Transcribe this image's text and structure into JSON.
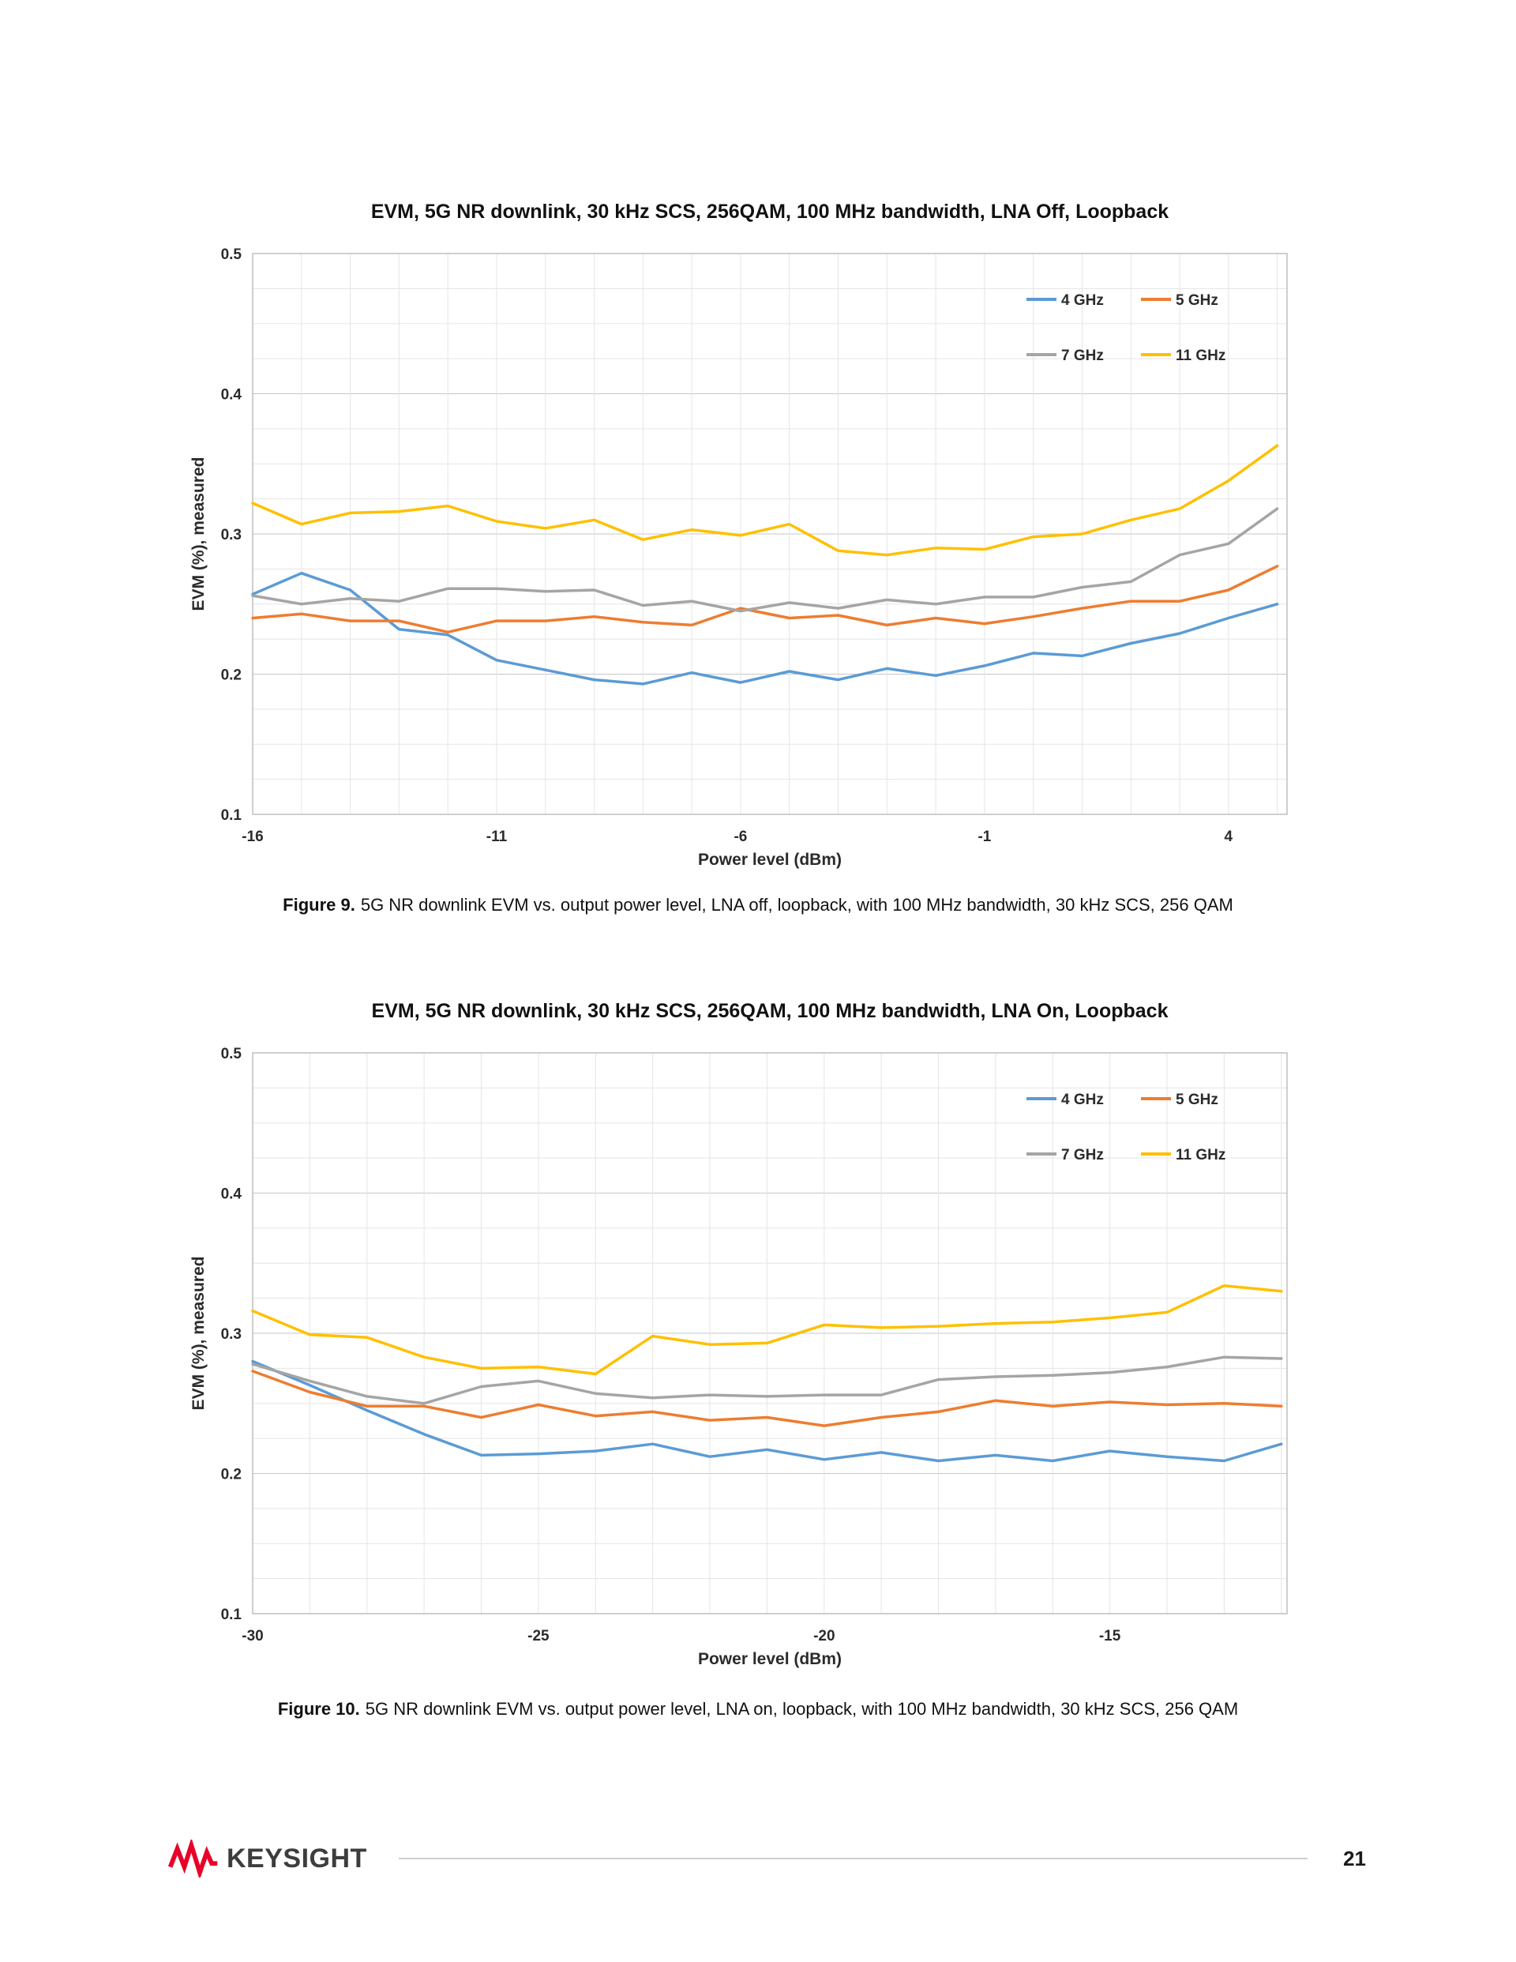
{
  "captions": {
    "figure9_label": "Figure 9.",
    "figure9_text": "5G NR downlink EVM vs. output power level, LNA off, loopback, with 100 MHz bandwidth, 30 kHz SCS, 256 QAM",
    "figure10_label": "Figure 10.",
    "figure10_text": "5G NR downlink EVM vs. output power level, LNA on, loopback, with 100 MHz bandwidth, 30 kHz SCS, 256 QAM"
  },
  "footer": {
    "brand": "KEYSIGHT",
    "brand_color": "#E90029",
    "page_number": "21"
  },
  "chart_data": [
    {
      "type": "line",
      "title": "EVM, 5G NR downlink, 30 kHz SCS, 256QAM, 100 MHz bandwidth, LNA Off, Loopback",
      "xlabel": "Power level (dBm)",
      "ylabel": "EVM (%),  measured",
      "xlim": [
        -16,
        5.2
      ],
      "ylim": [
        0.1,
        0.5
      ],
      "x_ticks": [
        -16,
        -11,
        -6,
        -1,
        4
      ],
      "y_ticks": [
        0.1,
        0.2,
        0.3,
        0.4,
        0.5
      ],
      "grid": {
        "y_minor_step": 0.025,
        "x_step": 1
      },
      "legend_position": "top-right",
      "x": [
        -16,
        -15,
        -14,
        -13,
        -12,
        -11,
        -10,
        -9,
        -8,
        -7,
        -6,
        -5,
        -4,
        -3,
        -2,
        -1,
        0,
        1,
        2,
        3,
        4,
        5
      ],
      "series": [
        {
          "name": "4 GHz",
          "color": "#5B9BD5",
          "values": [
            0.257,
            0.272,
            0.26,
            0.232,
            0.228,
            0.21,
            0.203,
            0.196,
            0.193,
            0.201,
            0.194,
            0.202,
            0.196,
            0.204,
            0.199,
            0.206,
            0.215,
            0.213,
            0.222,
            0.229,
            0.24,
            0.25
          ]
        },
        {
          "name": "5 GHz",
          "color": "#ED7D31",
          "values": [
            0.24,
            0.243,
            0.238,
            0.238,
            0.23,
            0.238,
            0.238,
            0.241,
            0.237,
            0.235,
            0.247,
            0.24,
            0.242,
            0.235,
            0.24,
            0.236,
            0.241,
            0.247,
            0.252,
            0.252,
            0.26,
            0.277
          ]
        },
        {
          "name": "7 GHz",
          "color": "#A5A5A5",
          "values": [
            0.256,
            0.25,
            0.254,
            0.252,
            0.261,
            0.261,
            0.259,
            0.26,
            0.249,
            0.252,
            0.245,
            0.251,
            0.247,
            0.253,
            0.25,
            0.255,
            0.255,
            0.262,
            0.266,
            0.285,
            0.293,
            0.318
          ]
        },
        {
          "name": "11 GHz",
          "color": "#FFC000",
          "values": [
            0.322,
            0.307,
            0.315,
            0.316,
            0.32,
            0.309,
            0.304,
            0.31,
            0.296,
            0.303,
            0.299,
            0.307,
            0.288,
            0.285,
            0.29,
            0.289,
            0.298,
            0.3,
            0.31,
            0.318,
            0.338,
            0.363
          ]
        }
      ]
    },
    {
      "type": "line",
      "title": "EVM, 5G NR downlink, 30 kHz SCS, 256QAM, 100 MHz bandwidth, LNA On, Loopback",
      "xlabel": "Power level (dBm)",
      "ylabel": "EVM (%),  measured",
      "xlim": [
        -30,
        -11.9
      ],
      "ylim": [
        0.1,
        0.5
      ],
      "x_ticks": [
        -30,
        -25,
        -20,
        -15
      ],
      "y_ticks": [
        0.1,
        0.2,
        0.3,
        0.4,
        0.5
      ],
      "grid": {
        "y_minor_step": 0.025,
        "x_step": 1
      },
      "legend_position": "top-right",
      "x": [
        -30,
        -29,
        -28,
        -27,
        -26,
        -25,
        -24,
        -23,
        -22,
        -21,
        -20,
        -19,
        -18,
        -17,
        -16,
        -15,
        -14,
        -13,
        -12
      ],
      "series": [
        {
          "name": "4 GHz",
          "color": "#5B9BD5",
          "values": [
            0.28,
            0.263,
            0.245,
            0.228,
            0.213,
            0.214,
            0.216,
            0.221,
            0.212,
            0.217,
            0.21,
            0.215,
            0.209,
            0.213,
            0.209,
            0.216,
            0.212,
            0.209,
            0.221
          ]
        },
        {
          "name": "5 GHz",
          "color": "#ED7D31",
          "values": [
            0.273,
            0.258,
            0.248,
            0.248,
            0.24,
            0.249,
            0.241,
            0.244,
            0.238,
            0.24,
            0.234,
            0.24,
            0.244,
            0.252,
            0.248,
            0.251,
            0.249,
            0.25,
            0.248
          ]
        },
        {
          "name": "7 GHz",
          "color": "#A5A5A5",
          "values": [
            0.278,
            0.266,
            0.255,
            0.25,
            0.262,
            0.266,
            0.257,
            0.254,
            0.256,
            0.255,
            0.256,
            0.256,
            0.267,
            0.269,
            0.27,
            0.272,
            0.276,
            0.283,
            0.282
          ]
        },
        {
          "name": "11 GHz",
          "color": "#FFC000",
          "values": [
            0.316,
            0.299,
            0.297,
            0.283,
            0.275,
            0.276,
            0.271,
            0.298,
            0.292,
            0.293,
            0.306,
            0.304,
            0.305,
            0.307,
            0.308,
            0.311,
            0.315,
            0.334,
            0.33
          ]
        }
      ]
    }
  ]
}
